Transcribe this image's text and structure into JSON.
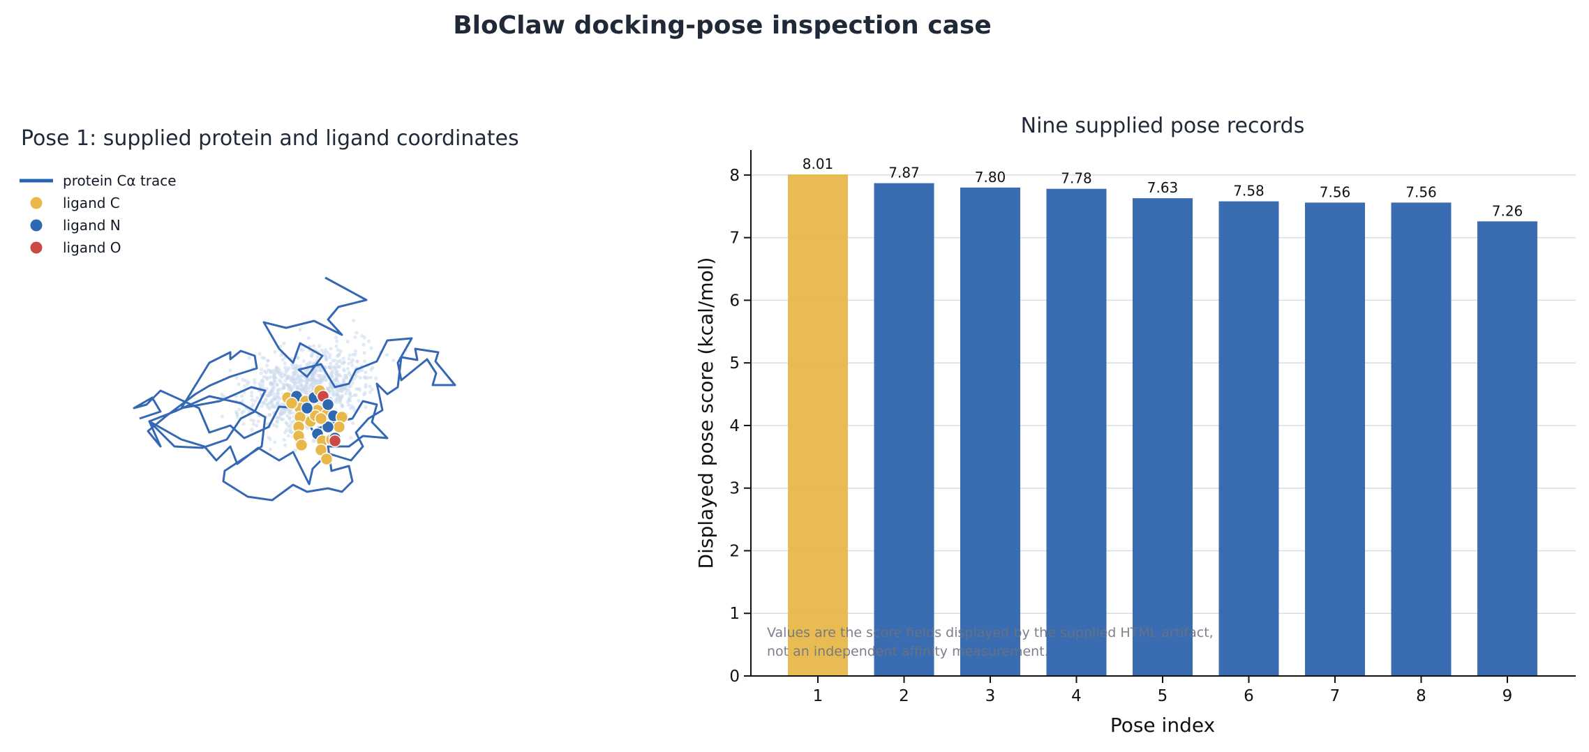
{
  "figure": {
    "title": "BloClaw docking-pose inspection case"
  },
  "colors": {
    "protein": "#2f5fa8",
    "protein_fill": "#c9d9ec",
    "ligand_C": "#e8b84a",
    "ligand_N": "#2e68b0",
    "ligand_O": "#cc4a45",
    "bar_highlight": "#e8b84a",
    "bar_default": "#2f64ad",
    "grid": "#d5dde8",
    "text": "#1f2937",
    "note": "#6b7280"
  },
  "structure_panel": {
    "title": "Pose 1: supplied protein and ligand coordinates",
    "legend": [
      {
        "label": "protein Cα trace",
        "kind": "line",
        "color": "#2f5fa8"
      },
      {
        "label": "ligand C",
        "kind": "dot",
        "color": "#e8b84a"
      },
      {
        "label": "ligand N",
        "kind": "dot",
        "color": "#2e68b0"
      },
      {
        "label": "ligand O",
        "kind": "dot",
        "color": "#cc4a45"
      }
    ]
  },
  "chart_data": {
    "type": "bar",
    "title": "Nine supplied pose records",
    "xlabel": "Pose index",
    "ylabel": "Displayed pose score (kcal/mol)",
    "categories": [
      "1",
      "2",
      "3",
      "4",
      "5",
      "6",
      "7",
      "8",
      "9"
    ],
    "values": [
      8.01,
      7.87,
      7.8,
      7.78,
      7.63,
      7.58,
      7.56,
      7.56,
      7.26
    ],
    "value_labels": [
      "8.01",
      "7.87",
      "7.80",
      "7.78",
      "7.63",
      "7.58",
      "7.56",
      "7.56",
      "7.26"
    ],
    "highlight_index": 0,
    "ylim": [
      0,
      8.4
    ],
    "yticks": [
      "0",
      "1",
      "2",
      "3",
      "4",
      "5",
      "6",
      "7",
      "8"
    ],
    "grid": "horizontal",
    "note_lines": [
      "Values are the score fields displayed by the supplied HTML artifact,",
      "not an independent affinity measurement."
    ]
  }
}
